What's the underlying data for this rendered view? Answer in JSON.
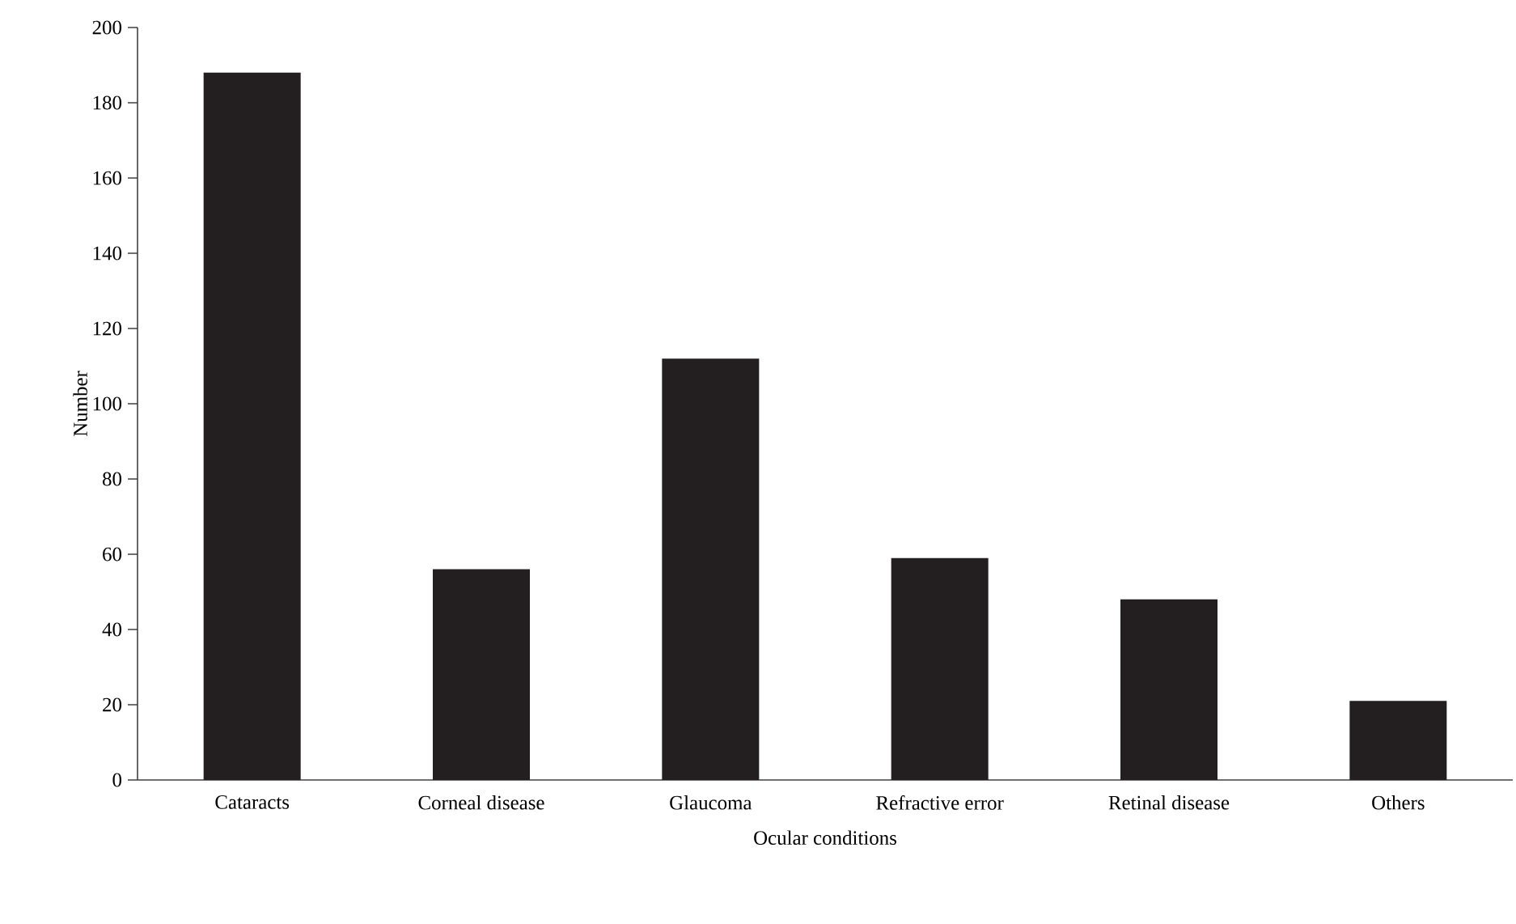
{
  "chart_data": {
    "type": "bar",
    "xlabel": "Ocular conditions",
    "ylabel": "Number",
    "categories": [
      "Cataracts",
      "Corneal disease",
      "Glaucoma",
      "Refractive error",
      "Retinal disease",
      "Others"
    ],
    "values": [
      188,
      56,
      112,
      59,
      48,
      21
    ],
    "color": "#231f20",
    "ylim": [
      0,
      200
    ],
    "yticks": [
      0,
      20,
      40,
      60,
      80,
      100,
      120,
      140,
      160,
      180,
      200
    ],
    "grid": false
  }
}
